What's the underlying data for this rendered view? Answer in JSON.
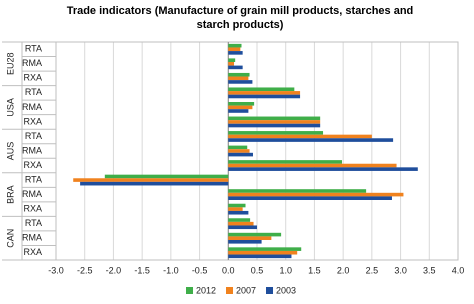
{
  "chart_data": {
    "type": "bar",
    "orientation": "horizontal",
    "title": "Trade indicators (Manufacture of grain mill products, starches and starch products)",
    "groups": [
      "EU28",
      "USA",
      "AUS",
      "BRA",
      "CAN"
    ],
    "categories": [
      "RTA",
      "RMA",
      "RXA",
      "RTA",
      "RMA",
      "RXA",
      "RTA",
      "RMA",
      "RXA",
      "RTA",
      "RMA",
      "RXA",
      "RTA",
      "RMA",
      "RXA"
    ],
    "series": [
      {
        "name": "2012",
        "color": "#3fae49",
        "values": [
          0.23,
          0.12,
          0.37,
          1.15,
          0.45,
          1.6,
          1.65,
          0.33,
          1.98,
          -2.15,
          2.4,
          0.3,
          0.38,
          0.92,
          1.27
        ]
      },
      {
        "name": "2007",
        "color": "#f0821e",
        "values": [
          0.21,
          0.1,
          0.35,
          1.25,
          0.42,
          1.6,
          2.5,
          0.37,
          2.93,
          -2.7,
          3.05,
          0.25,
          0.44,
          0.75,
          1.2
        ]
      },
      {
        "name": "2003",
        "color": "#1f4e9c",
        "values": [
          0.25,
          0.25,
          0.42,
          1.25,
          0.35,
          1.6,
          2.87,
          0.43,
          3.3,
          -2.58,
          2.85,
          0.35,
          0.5,
          0.58,
          1.1
        ]
      }
    ],
    "xlim": [
      -3.0,
      4.0
    ],
    "xticks": [
      {
        "value": -3.0,
        "label": "-3.0"
      },
      {
        "value": -2.5,
        "label": "-2.5"
      },
      {
        "value": -2.0,
        "label": "-2.0"
      },
      {
        "value": -1.5,
        "label": "-1.5"
      },
      {
        "value": -1.0,
        "label": "-1.0"
      },
      {
        "value": -0.5,
        "label": "-0.5"
      },
      {
        "value": 0.0,
        "label": "0.0"
      },
      {
        "value": 0.5,
        "label": "0.5"
      },
      {
        "value": 1.0,
        "label": "1.0"
      },
      {
        "value": 1.5,
        "label": "1.5"
      },
      {
        "value": 2.0,
        "label": "2.0"
      },
      {
        "value": 2.5,
        "label": "2.5"
      },
      {
        "value": 3.0,
        "label": "3.0"
      },
      {
        "value": 3.5,
        "label": "3.5"
      },
      {
        "value": 4.0,
        "label": "4.0"
      }
    ],
    "grid": true,
    "legend": "bottom"
  }
}
